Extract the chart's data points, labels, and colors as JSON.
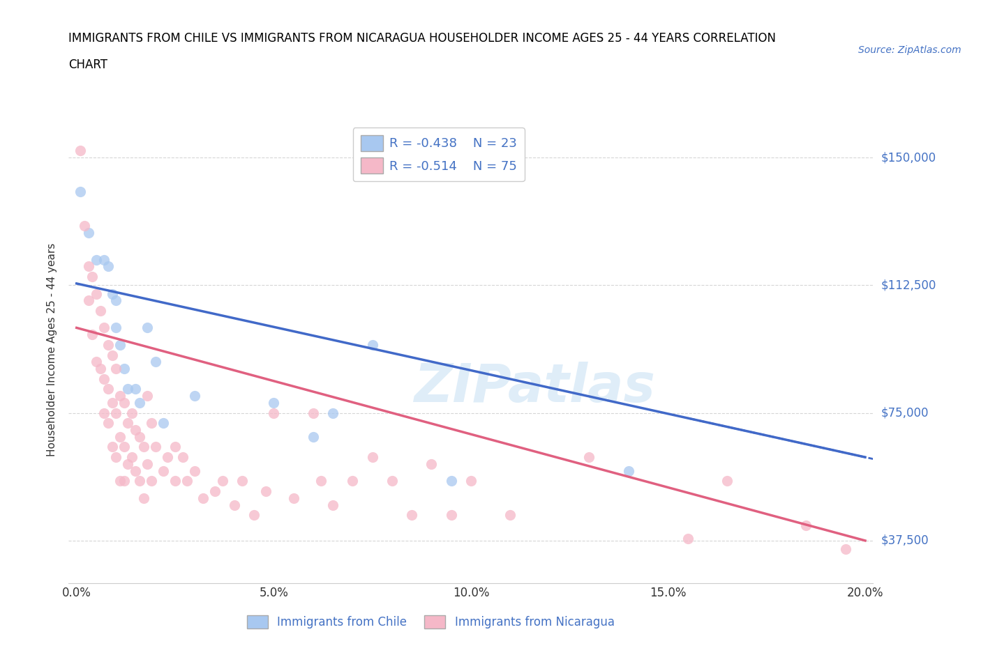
{
  "title_line1": "IMMIGRANTS FROM CHILE VS IMMIGRANTS FROM NICARAGUA HOUSEHOLDER INCOME AGES 25 - 44 YEARS CORRELATION",
  "title_line2": "CHART",
  "source": "Source: ZipAtlas.com",
  "ylabel": "Householder Income Ages 25 - 44 years",
  "yticks": [
    37500,
    75000,
    112500,
    150000
  ],
  "ytick_labels": [
    "$37,500",
    "$75,000",
    "$112,500",
    "$150,000"
  ],
  "xlim": [
    -0.002,
    0.202
  ],
  "ylim": [
    25000,
    162000
  ],
  "xtick_labels": [
    "0.0%",
    "",
    "5.0%",
    "",
    "10.0%",
    "",
    "15.0%",
    "",
    "20.0%"
  ],
  "xticks": [
    0.0,
    0.025,
    0.05,
    0.075,
    0.1,
    0.125,
    0.15,
    0.175,
    0.2
  ],
  "chile_color": "#a8c8f0",
  "nicaragua_color": "#f5b8c8",
  "chile_line_color": "#4169c8",
  "nicaragua_line_color": "#e06080",
  "chile_R": -0.438,
  "chile_N": 23,
  "nicaragua_R": -0.514,
  "nicaragua_N": 75,
  "legend_label_chile": "Immigrants from Chile",
  "legend_label_nicaragua": "Immigrants from Nicaragua",
  "watermark": "ZIPatlas",
  "chile_line_x0": 0.0,
  "chile_line_y0": 113000,
  "chile_line_x1": 0.2,
  "chile_line_y1": 62000,
  "nicaragua_line_x0": 0.0,
  "nicaragua_line_y0": 100000,
  "nicaragua_line_x1": 0.2,
  "nicaragua_line_y1": 37500,
  "chile_scatter_x": [
    0.001,
    0.003,
    0.005,
    0.007,
    0.008,
    0.009,
    0.01,
    0.01,
    0.011,
    0.012,
    0.013,
    0.015,
    0.016,
    0.018,
    0.02,
    0.022,
    0.03,
    0.05,
    0.06,
    0.065,
    0.075,
    0.095,
    0.14
  ],
  "chile_scatter_y": [
    140000,
    128000,
    120000,
    120000,
    118000,
    110000,
    108000,
    100000,
    95000,
    88000,
    82000,
    82000,
    78000,
    100000,
    90000,
    72000,
    80000,
    78000,
    68000,
    75000,
    95000,
    55000,
    58000
  ],
  "nicaragua_scatter_x": [
    0.001,
    0.002,
    0.003,
    0.003,
    0.004,
    0.004,
    0.005,
    0.005,
    0.006,
    0.006,
    0.007,
    0.007,
    0.007,
    0.008,
    0.008,
    0.008,
    0.009,
    0.009,
    0.009,
    0.01,
    0.01,
    0.01,
    0.011,
    0.011,
    0.011,
    0.012,
    0.012,
    0.012,
    0.013,
    0.013,
    0.014,
    0.014,
    0.015,
    0.015,
    0.016,
    0.016,
    0.017,
    0.017,
    0.018,
    0.018,
    0.019,
    0.019,
    0.02,
    0.022,
    0.023,
    0.025,
    0.025,
    0.027,
    0.028,
    0.03,
    0.032,
    0.035,
    0.037,
    0.04,
    0.042,
    0.045,
    0.048,
    0.05,
    0.055,
    0.06,
    0.062,
    0.065,
    0.07,
    0.075,
    0.08,
    0.085,
    0.09,
    0.095,
    0.1,
    0.11,
    0.13,
    0.155,
    0.165,
    0.185,
    0.195
  ],
  "nicaragua_scatter_y": [
    152000,
    130000,
    118000,
    108000,
    115000,
    98000,
    110000,
    90000,
    105000,
    88000,
    100000,
    85000,
    75000,
    95000,
    82000,
    72000,
    92000,
    78000,
    65000,
    88000,
    75000,
    62000,
    80000,
    68000,
    55000,
    78000,
    65000,
    55000,
    72000,
    60000,
    75000,
    62000,
    70000,
    58000,
    68000,
    55000,
    65000,
    50000,
    80000,
    60000,
    72000,
    55000,
    65000,
    58000,
    62000,
    65000,
    55000,
    62000,
    55000,
    58000,
    50000,
    52000,
    55000,
    48000,
    55000,
    45000,
    52000,
    75000,
    50000,
    75000,
    55000,
    48000,
    55000,
    62000,
    55000,
    45000,
    60000,
    45000,
    55000,
    45000,
    62000,
    38000,
    55000,
    42000,
    35000
  ]
}
